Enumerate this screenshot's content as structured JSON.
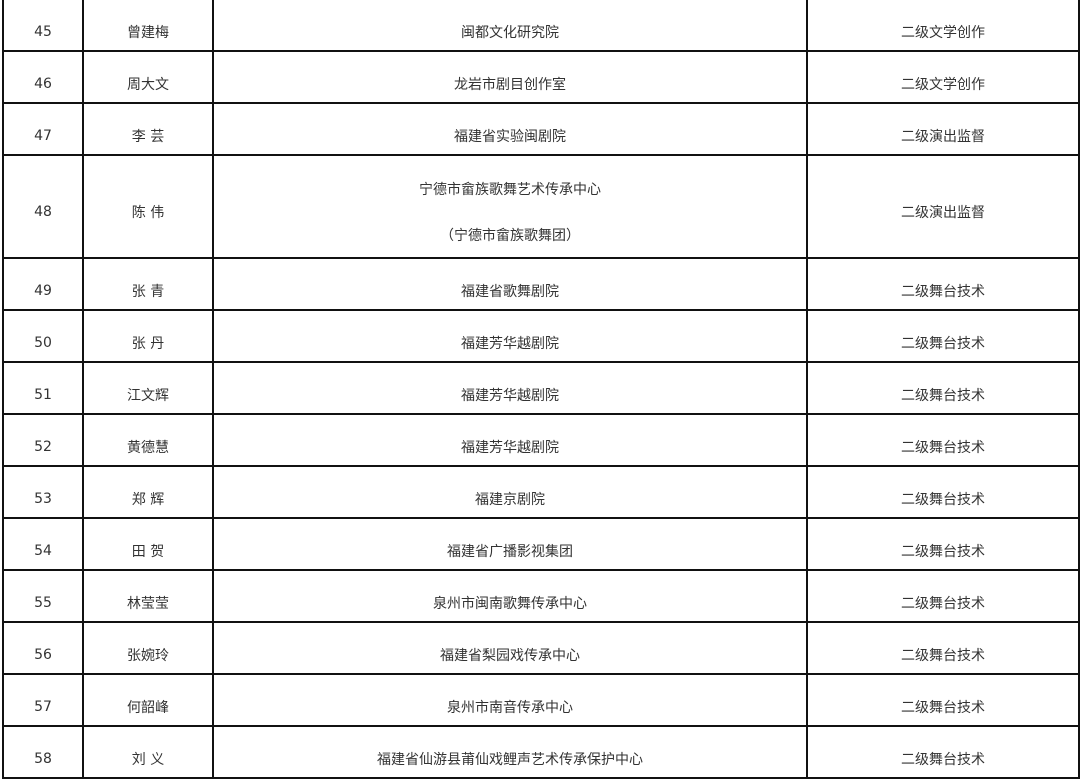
{
  "rows": [
    {
      "no": "45",
      "name": "曾建梅",
      "org": [
        "闽都文化研究院"
      ],
      "title": "二级文学创作"
    },
    {
      "no": "46",
      "name": "周大文",
      "org": [
        "龙岩市剧目创作室"
      ],
      "title": "二级文学创作"
    },
    {
      "no": "47",
      "name": "李 芸",
      "org": [
        "福建省实验闽剧院"
      ],
      "title": "二级演出监督"
    },
    {
      "no": "48",
      "name": "陈 伟",
      "org": [
        "宁德市畲族歌舞艺术传承中心",
        "（宁德市畲族歌舞团）"
      ],
      "title": "二级演出监督"
    },
    {
      "no": "49",
      "name": "张 青",
      "org": [
        "福建省歌舞剧院"
      ],
      "title": "二级舞台技术"
    },
    {
      "no": "50",
      "name": "张 丹",
      "org": [
        "福建芳华越剧院"
      ],
      "title": "二级舞台技术"
    },
    {
      "no": "51",
      "name": "江文辉",
      "org": [
        "福建芳华越剧院"
      ],
      "title": "二级舞台技术"
    },
    {
      "no": "52",
      "name": "黄德慧",
      "org": [
        "福建芳华越剧院"
      ],
      "title": "二级舞台技术"
    },
    {
      "no": "53",
      "name": "郑 辉",
      "org": [
        "福建京剧院"
      ],
      "title": "二级舞台技术"
    },
    {
      "no": "54",
      "name": "田 贺",
      "org": [
        "福建省广播影视集团"
      ],
      "title": "二级舞台技术"
    },
    {
      "no": "55",
      "name": "林莹莹",
      "org": [
        "泉州市闽南歌舞传承中心"
      ],
      "title": "二级舞台技术"
    },
    {
      "no": "56",
      "name": "张婉玲",
      "org": [
        "福建省梨园戏传承中心"
      ],
      "title": "二级舞台技术"
    },
    {
      "no": "57",
      "name": "何韶峰",
      "org": [
        "泉州市南音传承中心"
      ],
      "title": "二级舞台技术"
    },
    {
      "no": "58",
      "name": "刘 义",
      "org": [
        "福建省仙游县莆仙戏鲤声艺术传承保护中心"
      ],
      "title": "二级舞台技术"
    }
  ]
}
